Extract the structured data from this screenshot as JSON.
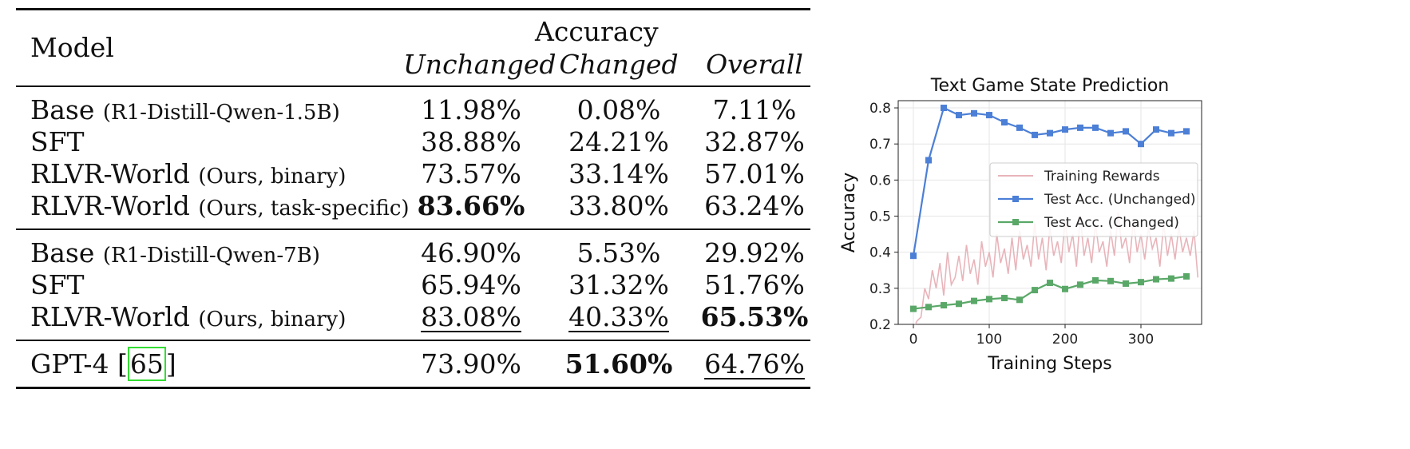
{
  "table": {
    "header": {
      "model": "Model",
      "group": "Accuracy",
      "cols": [
        "Unchanged",
        "Changed",
        "Overall"
      ]
    },
    "groups": [
      [
        {
          "name": "Base",
          "note": "(R1-Distill-Qwen-1.5B)",
          "vals": [
            "11.98%",
            "0.08%",
            "7.11%"
          ],
          "bold": [],
          "under": []
        },
        {
          "name": "SFT",
          "note": "",
          "vals": [
            "38.88%",
            "24.21%",
            "32.87%"
          ],
          "bold": [],
          "under": []
        },
        {
          "name": "RLVR-World",
          "note": "(Ours, binary)",
          "vals": [
            "73.57%",
            "33.14%",
            "57.01%"
          ],
          "bold": [],
          "under": []
        },
        {
          "name": "RLVR-World",
          "note": "(Ours, task-specific)",
          "vals": [
            "83.66%",
            "33.80%",
            "63.24%"
          ],
          "bold": [
            0
          ],
          "under": []
        }
      ],
      [
        {
          "name": "Base",
          "note": "(R1-Distill-Qwen-7B)",
          "vals": [
            "46.90%",
            "5.53%",
            "29.92%"
          ],
          "bold": [],
          "under": []
        },
        {
          "name": "SFT",
          "note": "",
          "vals": [
            "65.94%",
            "31.32%",
            "51.76%"
          ],
          "bold": [],
          "under": []
        },
        {
          "name": "RLVR-World",
          "note": "(Ours, binary)",
          "vals": [
            "83.08%",
            "40.33%",
            "65.53%"
          ],
          "bold": [
            2
          ],
          "under": [
            0,
            1
          ]
        }
      ],
      [
        {
          "name": "GPT-4 ",
          "cite": "65",
          "vals": [
            "73.90%",
            "51.60%",
            "64.76%"
          ],
          "bold": [
            1
          ],
          "under": [
            2
          ]
        }
      ]
    ]
  },
  "chart_data": {
    "type": "line",
    "title": "Text Game State Prediction",
    "xlabel": "Training Steps",
    "ylabel": "Accuracy",
    "xlim": [
      -20,
      380
    ],
    "ylim": [
      0.2,
      0.82
    ],
    "xticks": [
      0,
      100,
      200,
      300
    ],
    "yticks": [
      0.2,
      0.3,
      0.4,
      0.5,
      0.6,
      0.7,
      0.8
    ],
    "grid": true,
    "legend_position": "center-right",
    "series": [
      {
        "name": "Training Rewards",
        "color": "#e8b4ba",
        "marker": "none",
        "x": [
          0,
          5,
          10,
          15,
          20,
          25,
          30,
          35,
          40,
          45,
          50,
          55,
          60,
          65,
          70,
          75,
          80,
          85,
          90,
          95,
          100,
          105,
          110,
          115,
          120,
          125,
          130,
          135,
          140,
          145,
          150,
          155,
          160,
          165,
          170,
          175,
          180,
          185,
          190,
          195,
          200,
          205,
          210,
          215,
          220,
          225,
          230,
          235,
          240,
          245,
          250,
          255,
          260,
          265,
          270,
          275,
          280,
          285,
          290,
          295,
          300,
          305,
          310,
          315,
          320,
          325,
          330,
          335,
          340,
          345,
          350,
          355,
          360,
          365,
          370,
          375
        ],
        "values": [
          0.19,
          0.21,
          0.22,
          0.3,
          0.27,
          0.35,
          0.3,
          0.37,
          0.28,
          0.4,
          0.31,
          0.33,
          0.39,
          0.32,
          0.42,
          0.34,
          0.38,
          0.31,
          0.43,
          0.36,
          0.4,
          0.33,
          0.45,
          0.37,
          0.41,
          0.34,
          0.44,
          0.35,
          0.46,
          0.38,
          0.42,
          0.36,
          0.48,
          0.38,
          0.44,
          0.35,
          0.47,
          0.39,
          0.43,
          0.37,
          0.49,
          0.4,
          0.45,
          0.36,
          0.5,
          0.39,
          0.44,
          0.37,
          0.48,
          0.4,
          0.43,
          0.36,
          0.46,
          0.39,
          0.51,
          0.41,
          0.44,
          0.37,
          0.49,
          0.4,
          0.45,
          0.38,
          0.47,
          0.41,
          0.44,
          0.36,
          0.48,
          0.39,
          0.45,
          0.38,
          0.47,
          0.4,
          0.44,
          0.39,
          0.46,
          0.33
        ]
      },
      {
        "name": "Test Acc. (Unchanged)",
        "color": "#4c7fd6",
        "marker": "square",
        "x": [
          0,
          20,
          40,
          60,
          80,
          100,
          120,
          140,
          160,
          180,
          200,
          220,
          240,
          260,
          280,
          300,
          320,
          340,
          360
        ],
        "values": [
          0.39,
          0.655,
          0.8,
          0.78,
          0.785,
          0.78,
          0.76,
          0.745,
          0.725,
          0.73,
          0.74,
          0.745,
          0.745,
          0.73,
          0.735,
          0.7,
          0.74,
          0.73,
          0.735
        ]
      },
      {
        "name": "Test Acc. (Changed)",
        "color": "#5aa868",
        "marker": "square",
        "x": [
          0,
          20,
          40,
          60,
          80,
          100,
          120,
          140,
          160,
          180,
          200,
          220,
          240,
          260,
          280,
          300,
          320,
          340,
          360
        ],
        "values": [
          0.243,
          0.248,
          0.253,
          0.257,
          0.265,
          0.27,
          0.273,
          0.268,
          0.295,
          0.315,
          0.298,
          0.31,
          0.322,
          0.32,
          0.313,
          0.317,
          0.325,
          0.327,
          0.333
        ]
      }
    ]
  }
}
